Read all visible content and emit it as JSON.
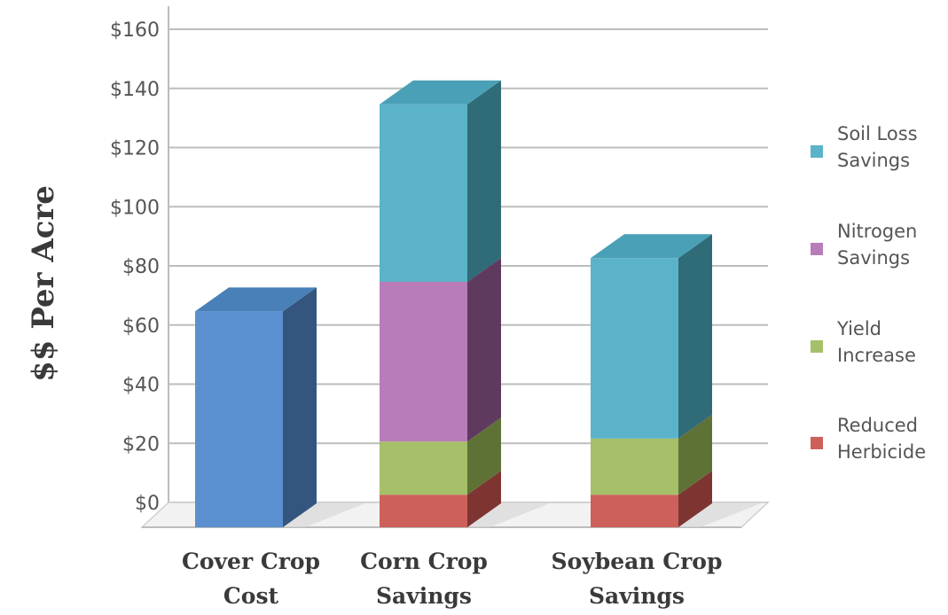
{
  "chart_data": {
    "type": "bar",
    "stacked": true,
    "three_d": true,
    "ylabel": "$$ Per Acre",
    "xlabel": "",
    "ylim": [
      0,
      160
    ],
    "yticks": [
      0,
      20,
      40,
      60,
      80,
      100,
      120,
      140,
      160
    ],
    "ytick_labels": [
      "$0",
      "$20",
      "$40",
      "$60",
      "$80",
      "$100",
      "$120",
      "$140",
      "$160"
    ],
    "grid": true,
    "legend_position": "right",
    "categories": [
      [
        "Cover Crop",
        "Cost"
      ],
      [
        "Corn Crop",
        "Savings"
      ],
      [
        "Soybean Crop",
        "Savings"
      ]
    ],
    "series": [
      {
        "name": "",
        "color": "#5b8fcf",
        "side": "#34567e",
        "top": "#4a80b8",
        "values": [
          73,
          0,
          0
        ]
      },
      {
        "name": "Reduced Herbicide",
        "legend": [
          "Reduced",
          "Herbicide"
        ],
        "color": "#cd605a",
        "side": "#7e3532",
        "top": "#b5504b",
        "values": [
          0,
          11,
          11
        ]
      },
      {
        "name": "Yield Increase",
        "legend": [
          "Yield",
          "Increase"
        ],
        "color": "#a6bf69",
        "side": "#5f7236",
        "top": "#93ab58",
        "values": [
          0,
          18,
          19
        ]
      },
      {
        "name": "Nitrogen Savings",
        "legend": [
          "Nitrogen",
          "Savings"
        ],
        "color": "#b87db8",
        "side": "#5f3a5f",
        "top": "#a26ea2",
        "values": [
          0,
          54,
          0
        ]
      },
      {
        "name": "Soil Loss Savings",
        "legend": [
          "Soil Loss",
          "Savings"
        ],
        "color": "#5bb3c9",
        "side": "#306b78",
        "top": "#4aa0b6",
        "values": [
          0,
          60,
          61
        ]
      }
    ],
    "legend_order": [
      4,
      3,
      2,
      1
    ]
  }
}
